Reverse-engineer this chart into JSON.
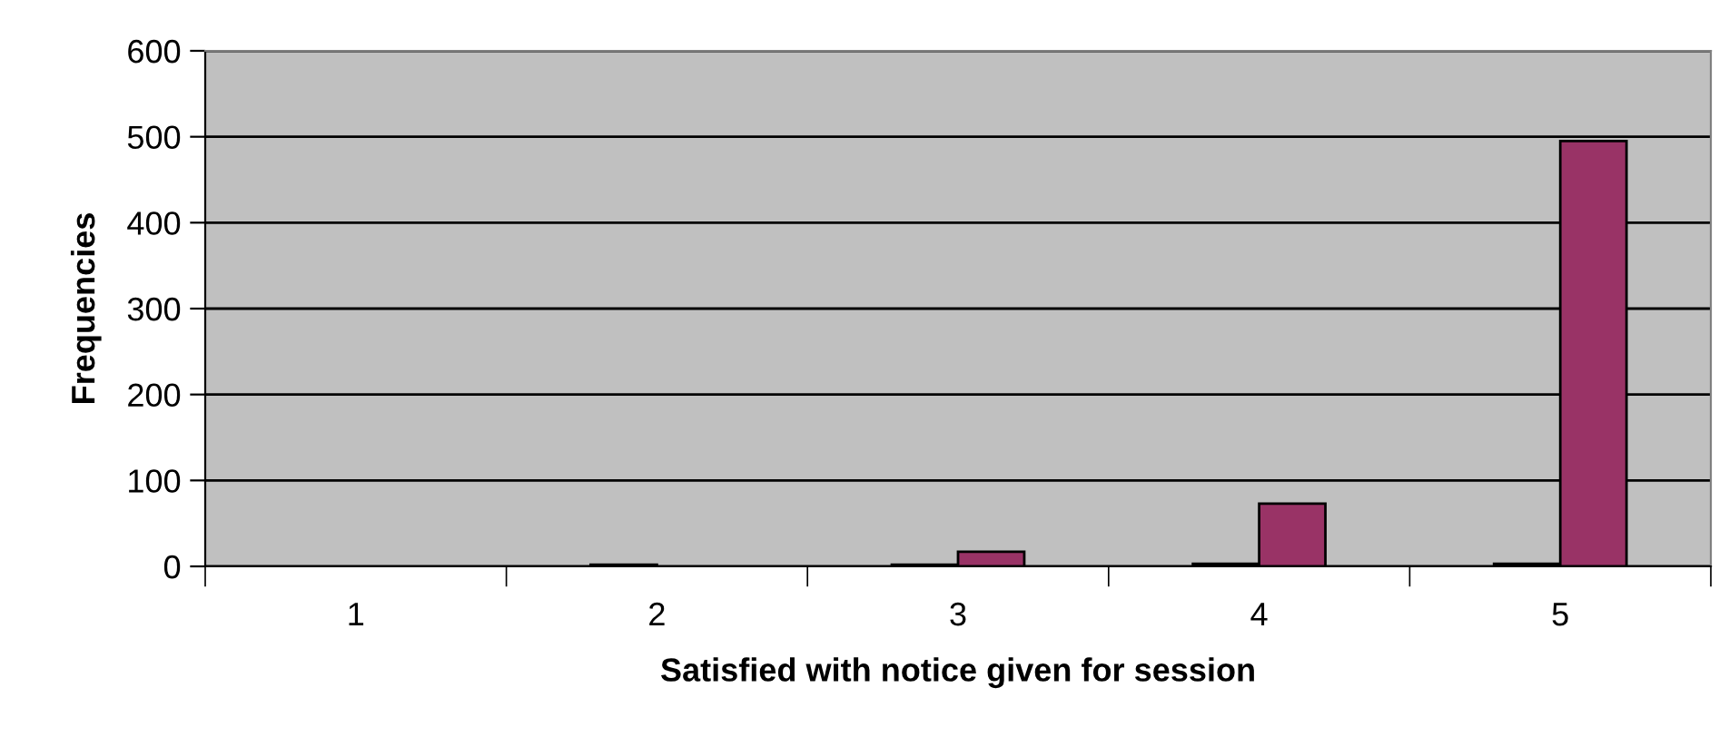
{
  "chart_data": {
    "type": "bar",
    "xlabel": "Satisfied with notice given for session",
    "ylabel": "Frequencies",
    "categories": [
      "1",
      "2",
      "3",
      "4",
      "5"
    ],
    "series": [
      {
        "color": "#000000",
        "values": [
          null,
          2,
          2,
          3,
          3
        ]
      },
      {
        "color": "#993366",
        "values": [
          null,
          null,
          17,
          73,
          495
        ]
      }
    ],
    "ylim": [
      0,
      600
    ],
    "yticks": [
      0,
      100,
      200,
      300,
      400,
      500,
      600
    ],
    "grid": "y",
    "legend": false
  }
}
